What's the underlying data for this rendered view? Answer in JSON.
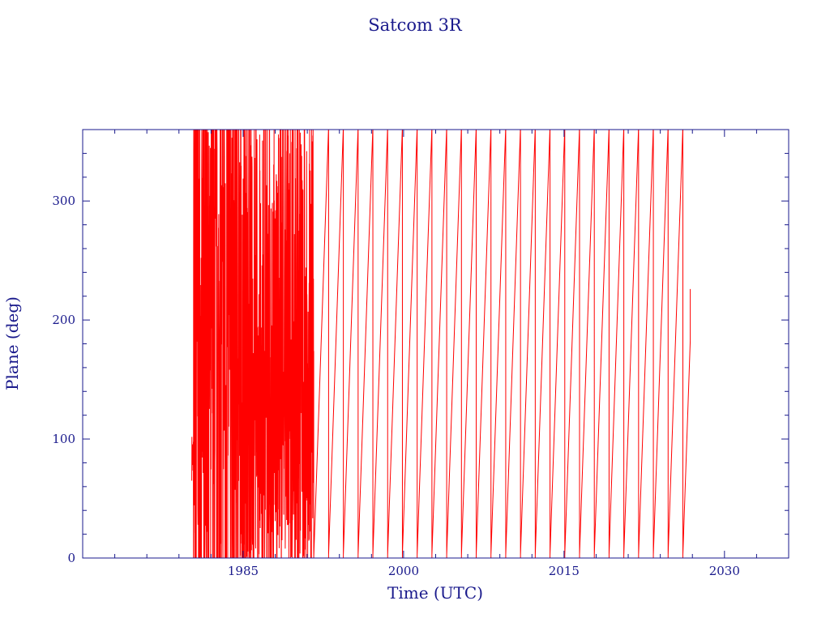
{
  "chart_data": {
    "type": "line",
    "title": "Satcom 3R",
    "xlabel": "Time (UTC)",
    "ylabel": "Plane (deg)",
    "xlim": [
      1970,
      2036
    ],
    "ylim": [
      0,
      360
    ],
    "x_ticks": [
      1985,
      2000,
      2015,
      2030
    ],
    "y_ticks": [
      0,
      100,
      200,
      300
    ],
    "grid": false,
    "legend": "none",
    "colors": {
      "axes": "#1a1a8c",
      "series": "#ff0000"
    },
    "series": [
      {
        "x_start": 1980.2,
        "x_end": 2026.8,
        "chaotic_until": 1991.6,
        "regular_from": 1991.6,
        "precession_period_years": 1.38,
        "y_range": [
          0,
          360
        ],
        "y_last": 226
      }
    ]
  }
}
